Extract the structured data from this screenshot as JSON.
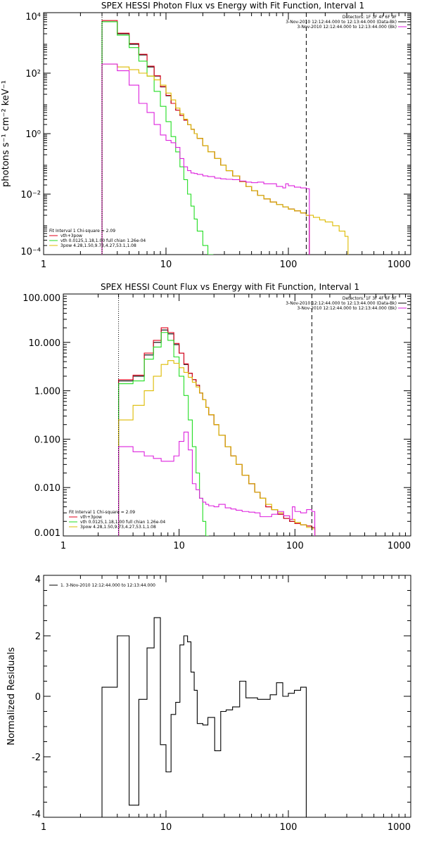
{
  "colors": {
    "black": "#000000",
    "red": "#e0001a",
    "green": "#22dd22",
    "yellow": "#ddbb00",
    "magenta": "#dd22dd"
  },
  "chart_data": [
    {
      "type": "line",
      "title": "SPEX HESSI Photon Flux vs Energy with Fit Function, Interval 1",
      "ylabel": "photons s⁻¹ cm⁻² keV⁻¹",
      "xlabel": "",
      "xscale": "log",
      "yscale": "log",
      "xlim": [
        1,
        1000
      ],
      "ylim": [
        0.0001,
        10000
      ],
      "x_ticks": [
        1,
        10,
        100,
        1000
      ],
      "x_tick_labels": [
        "1",
        "10",
        "100",
        "1000"
      ],
      "y_ticks": [
        0.0001,
        0.01,
        1,
        100,
        10000
      ],
      "y_tick_labels": [
        "10⁻⁴",
        "10⁻²",
        "10⁰",
        "10²",
        "10⁴"
      ],
      "info_lines": [
        "Detectors: 1F 3F 4F 6F 9F",
        "3-Nov-2010 12:12:44.000 to 12:13:44.000 (Data-Bk)",
        "3-Nov-2010 12:12:44.000 to 12:13:44.000 (Bk)"
      ],
      "legend_lines": [
        "Fit Interval  1    Chi-square = 2.09",
        "vth+3pow",
        "vth 0.0125,1.18,1.00  full chian 1.26e-04",
        "3pow 4.28,1.50,9.73,4.27,53.1,1.08"
      ],
      "vlines": [
        3,
        140
      ],
      "series": [
        {
          "name": "3-Nov-2010 12:12:44.000 to 12:13:44.000 (Data-Bk)",
          "color": "#000000",
          "x": [
            3,
            4,
            5,
            6,
            7,
            8,
            9,
            10,
            11,
            12,
            13,
            14,
            15,
            16,
            17,
            18,
            20,
            22,
            25,
            28,
            31,
            35,
            40,
            45,
            50,
            56,
            63,
            71,
            80,
            90,
            100,
            112,
            126,
            140
          ],
          "y": [
            5000,
            2000,
            900,
            400,
            160,
            80,
            35,
            18,
            10,
            6,
            4,
            2.8,
            2,
            1.4,
            1,
            0.7,
            0.4,
            0.25,
            0.15,
            0.09,
            0.06,
            0.04,
            0.026,
            0.018,
            0.013,
            0.009,
            0.007,
            0.0055,
            0.0045,
            0.0038,
            0.0032,
            0.0028,
            0.0024,
            0.002
          ]
        },
        {
          "name": "vth+3pow",
          "color": "#e0001a",
          "x": [
            3,
            4,
            5,
            6,
            7,
            8,
            9,
            10,
            11,
            12,
            13,
            14,
            15,
            16,
            17,
            18,
            20,
            22,
            25,
            28,
            31,
            35,
            40,
            45,
            50,
            56,
            63,
            71,
            80,
            90,
            100,
            112,
            126,
            140
          ],
          "y": [
            5500,
            2100,
            950,
            420,
            170,
            82,
            36,
            18.5,
            10,
            6,
            4,
            2.8,
            2,
            1.4,
            1,
            0.7,
            0.4,
            0.25,
            0.15,
            0.09,
            0.06,
            0.04,
            0.026,
            0.018,
            0.013,
            0.009,
            0.007,
            0.0055,
            0.0045,
            0.0038,
            0.0032,
            0.0028,
            0.0024,
            0.002
          ]
        },
        {
          "name": "vth",
          "color": "#22dd22",
          "x": [
            3,
            4,
            5,
            6,
            7,
            8,
            9,
            10,
            11,
            12,
            13,
            14,
            15,
            16,
            17,
            18,
            20,
            22,
            23
          ],
          "y": [
            5000,
            1800,
            700,
            250,
            80,
            25,
            8,
            2.5,
            0.8,
            0.25,
            0.08,
            0.03,
            0.01,
            0.004,
            0.0015,
            0.0006,
            0.0002,
            8e-05,
            8e-05
          ]
        },
        {
          "name": "3pow",
          "color": "#ddbb00",
          "x": [
            3,
            4,
            5,
            6,
            7,
            8,
            9,
            10,
            11,
            12,
            13,
            14,
            15,
            16,
            17,
            18,
            20,
            22,
            25,
            28,
            31,
            35,
            40,
            45,
            50,
            56,
            63,
            71,
            80,
            90,
            100,
            112,
            126,
            140,
            160,
            180,
            200,
            230,
            260,
            290
          ],
          "y": [
            200,
            160,
            130,
            100,
            80,
            60,
            40,
            22,
            13,
            7,
            4.5,
            3,
            2,
            1.4,
            1,
            0.7,
            0.4,
            0.25,
            0.15,
            0.09,
            0.06,
            0.04,
            0.026,
            0.018,
            0.013,
            0.009,
            0.007,
            0.0055,
            0.0045,
            0.0038,
            0.0032,
            0.0028,
            0.0024,
            0.002,
            0.0017,
            0.0014,
            0.0012,
            0.0009,
            0.0006,
            0.0004
          ]
        },
        {
          "name": "3-Nov-2010 12:12:44.000 to 12:13:44.000 (Bk)",
          "color": "#dd22dd",
          "x": [
            3,
            4,
            5,
            6,
            7,
            8,
            9,
            10,
            11,
            12,
            13,
            14,
            15,
            16,
            17,
            18,
            20,
            22,
            25,
            28,
            31,
            35,
            40,
            45,
            50,
            56,
            63,
            71,
            80,
            90,
            95,
            100,
            112,
            126,
            140
          ],
          "y": [
            200,
            120,
            40,
            10,
            5,
            2,
            0.9,
            0.6,
            0.5,
            0.35,
            0.15,
            0.08,
            0.06,
            0.05,
            0.048,
            0.045,
            0.04,
            0.038,
            0.034,
            0.032,
            0.031,
            0.03,
            0.027,
            0.025,
            0.024,
            0.025,
            0.022,
            0.022,
            0.018,
            0.016,
            0.022,
            0.019,
            0.017,
            0.016,
            0.015
          ]
        }
      ]
    },
    {
      "type": "line",
      "title": "SPEX HESSI Count Flux vs Energy with Fit Function, Interval 1",
      "ylabel": "",
      "xlabel": "",
      "xscale": "log",
      "yscale": "log",
      "xlim": [
        1,
        1000
      ],
      "ylim": [
        0.001,
        100
      ],
      "x_ticks": [
        1,
        10,
        100,
        1000
      ],
      "x_tick_labels": [
        "1",
        "10",
        "100",
        "1000"
      ],
      "y_ticks": [
        0.001,
        0.01,
        0.1,
        1,
        10,
        100
      ],
      "y_tick_labels": [
        "0.001",
        "0.010",
        "0.100",
        "1.000",
        "10.000",
        "100.000"
      ],
      "info_lines": [
        "Detectors: 1F 3F 4F 6F 9F",
        "3-Nov-2010 12:12:44.000 to 12:13:44.000 (Data-Bk)",
        "3-Nov-2010 12:12:44.000 to 12:13:44.000 (Bk)"
      ],
      "legend_lines": [
        "Fit Interval  1    Chi-square = 2.09",
        "vth+3pow",
        "vth 0.0125,1.18,1.00  full chian 1.26e-04",
        "3pow 4.28,1.50,9.73,4.27,53.1,1.08"
      ],
      "vlines": [
        3,
        140
      ],
      "series": [
        {
          "name": "3-Nov-2010 12:12:44.000 to 12:13:44.000 (Data-Bk)",
          "color": "#000000",
          "x": [
            3,
            4,
            5,
            6,
            7,
            8,
            9,
            10,
            11,
            12,
            13,
            14,
            15,
            16,
            17,
            18,
            20,
            22,
            25,
            28,
            31,
            35,
            40,
            45,
            50,
            56,
            63,
            71,
            80,
            90,
            100,
            112,
            126,
            140
          ],
          "y": [
            1.6,
            2.0,
            5.5,
            10,
            18,
            15,
            9,
            6,
            3.5,
            2.3,
            1.7,
            1.3,
            0.9,
            0.65,
            0.45,
            0.32,
            0.2,
            0.12,
            0.07,
            0.045,
            0.03,
            0.018,
            0.012,
            0.008,
            0.006,
            0.004,
            0.0035,
            0.0028,
            0.0023,
            0.002,
            0.0018,
            0.0017,
            0.0016,
            0.0015
          ]
        },
        {
          "name": "vth+3pow",
          "color": "#e0001a",
          "x": [
            3,
            4,
            5,
            6,
            7,
            8,
            9,
            10,
            11,
            12,
            13,
            14,
            15,
            16,
            17,
            18,
            20,
            22,
            25,
            28,
            31,
            35,
            40,
            45,
            50,
            56,
            63,
            71,
            80,
            90,
            100,
            112,
            126,
            140
          ],
          "y": [
            1.7,
            2.1,
            6,
            11,
            20,
            16,
            9.5,
            6,
            3.6,
            2.3,
            1.7,
            1.3,
            0.9,
            0.65,
            0.45,
            0.32,
            0.2,
            0.12,
            0.07,
            0.045,
            0.03,
            0.018,
            0.012,
            0.008,
            0.006,
            0.004,
            0.0035,
            0.0028,
            0.0023,
            0.002,
            0.0018,
            0.0017,
            0.0016,
            0.0015
          ]
        },
        {
          "name": "vth",
          "color": "#22dd22",
          "x": [
            3,
            4,
            5,
            6,
            7,
            8,
            9,
            10,
            11,
            12,
            13,
            14,
            15,
            16,
            17
          ],
          "y": [
            1.4,
            1.6,
            4.5,
            8,
            16,
            11,
            5,
            2,
            0.8,
            0.25,
            0.07,
            0.02,
            0.006,
            0.002,
            0.0007
          ]
        },
        {
          "name": "3pow",
          "color": "#ddbb00",
          "x": [
            3,
            4,
            5,
            6,
            7,
            8,
            9,
            10,
            11,
            12,
            13,
            14,
            15,
            16,
            17,
            18,
            20,
            22,
            25,
            28,
            31,
            35,
            40,
            45,
            50,
            56,
            63,
            71,
            80,
            90,
            100,
            112,
            126,
            140
          ],
          "y": [
            0.25,
            0.5,
            1.0,
            2.0,
            3.5,
            4.2,
            3.7,
            3,
            2.4,
            1.9,
            1.5,
            1.2,
            0.9,
            0.65,
            0.45,
            0.32,
            0.2,
            0.12,
            0.07,
            0.045,
            0.03,
            0.018,
            0.012,
            0.008,
            0.006,
            0.0045,
            0.0035,
            0.003,
            0.0026,
            0.0022,
            0.0019,
            0.0017,
            0.0015,
            0.0014
          ]
        },
        {
          "name": "3-Nov-2010 12:12:44.000 to 12:13:44.000 (Bk)",
          "color": "#dd22dd",
          "x": [
            3,
            4,
            5,
            6,
            7,
            8,
            9,
            10,
            11,
            12,
            13,
            14,
            15,
            16,
            17,
            18,
            20,
            22,
            25,
            28,
            31,
            35,
            40,
            45,
            50,
            56,
            63,
            71,
            80,
            90,
            95,
            100,
            112,
            126,
            140
          ],
          "y": [
            0.07,
            0.055,
            0.045,
            0.04,
            0.035,
            0.035,
            0.045,
            0.09,
            0.14,
            0.06,
            0.012,
            0.009,
            0.006,
            0.005,
            0.0045,
            0.0042,
            0.004,
            0.0045,
            0.0038,
            0.0036,
            0.0034,
            0.0032,
            0.0031,
            0.003,
            0.0025,
            0.0025,
            0.0028,
            0.0032,
            0.0026,
            0.0022,
            0.004,
            0.0032,
            0.003,
            0.0035,
            0.0032
          ]
        }
      ]
    },
    {
      "type": "line",
      "title": "",
      "ylabel": "Normalized Residuals",
      "xlabel": "",
      "xscale": "log",
      "yscale": "linear",
      "xlim": [
        1,
        1000
      ],
      "ylim": [
        -4,
        4
      ],
      "x_ticks": [
        1,
        10,
        100,
        1000
      ],
      "x_tick_labels": [
        "1",
        "10",
        "100",
        "1000"
      ],
      "y_ticks": [
        -4,
        -2,
        0,
        2,
        4
      ],
      "y_tick_labels": [
        "-4",
        "-2",
        "0",
        "2",
        "4"
      ],
      "legend_lines": [
        "1.  3-Nov-2010 12:12:44.000 to 12:13:44.000"
      ],
      "series": [
        {
          "name": "1.  3-Nov-2010 12:12:44.000 to 12:13:44.000",
          "color": "#000000",
          "edges": [
            3,
            4,
            5,
            6,
            7,
            8,
            9,
            10,
            11,
            12,
            13,
            14,
            15,
            16,
            17,
            18,
            20,
            22,
            25,
            28,
            31,
            35,
            40,
            45,
            50,
            56,
            63,
            71,
            80,
            90,
            100,
            112,
            126,
            140
          ],
          "values": [
            0.3,
            2.0,
            -3.6,
            -0.1,
            1.6,
            2.6,
            -1.6,
            -2.5,
            -0.6,
            -0.2,
            1.7,
            2.0,
            1.8,
            0.8,
            0.2,
            -0.9,
            -0.95,
            -0.7,
            -1.8,
            -0.5,
            -0.45,
            -0.35,
            0.5,
            -0.05,
            -0.05,
            -0.1,
            -0.1,
            0.05,
            0.45,
            0.0,
            0.1,
            0.2,
            0.3
          ]
        }
      ]
    }
  ]
}
